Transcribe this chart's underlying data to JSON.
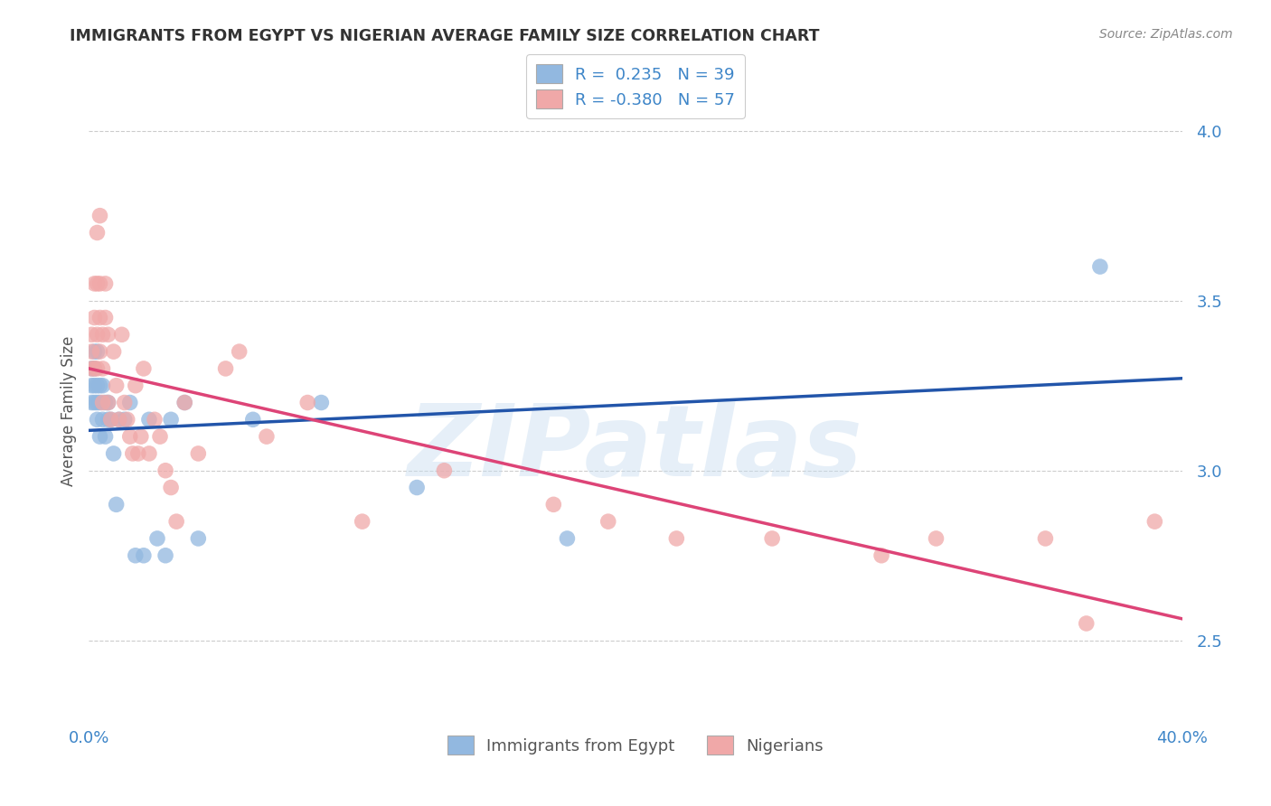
{
  "title": "IMMIGRANTS FROM EGYPT VS NIGERIAN AVERAGE FAMILY SIZE CORRELATION CHART",
  "source": "Source: ZipAtlas.com",
  "ylabel": "Average Family Size",
  "watermark": "ZIPatlas",
  "legend_egypt_label": "Immigrants from Egypt",
  "legend_nigeria_label": "Nigerians",
  "egypt_R": 0.235,
  "egypt_N": 39,
  "nigeria_R": -0.38,
  "nigeria_N": 57,
  "egypt_color": "#92b8e0",
  "nigeria_color": "#f0a8a8",
  "egypt_line_color": "#2255aa",
  "nigeria_line_color": "#dd4477",
  "xlim": [
    0.0,
    0.4
  ],
  "ylim": [
    2.25,
    4.1
  ],
  "yticks": [
    2.5,
    3.0,
    3.5,
    4.0
  ],
  "egypt_x": [
    0.001,
    0.001,
    0.001,
    0.002,
    0.002,
    0.002,
    0.002,
    0.003,
    0.003,
    0.003,
    0.003,
    0.004,
    0.004,
    0.004,
    0.005,
    0.005,
    0.006,
    0.006,
    0.007,
    0.007,
    0.008,
    0.009,
    0.01,
    0.011,
    0.013,
    0.015,
    0.017,
    0.02,
    0.022,
    0.025,
    0.028,
    0.03,
    0.035,
    0.04,
    0.06,
    0.085,
    0.12,
    0.175,
    0.37
  ],
  "egypt_y": [
    3.3,
    3.2,
    3.25,
    3.35,
    3.2,
    3.25,
    3.3,
    3.35,
    3.2,
    3.25,
    3.15,
    3.2,
    3.25,
    3.1,
    3.25,
    3.15,
    3.2,
    3.1,
    3.2,
    3.15,
    3.15,
    3.05,
    2.9,
    3.15,
    3.15,
    3.2,
    2.75,
    2.75,
    3.15,
    2.8,
    2.75,
    3.15,
    3.2,
    2.8,
    3.15,
    3.2,
    2.95,
    2.8,
    3.6
  ],
  "nigeria_x": [
    0.001,
    0.001,
    0.001,
    0.002,
    0.002,
    0.002,
    0.003,
    0.003,
    0.003,
    0.003,
    0.004,
    0.004,
    0.004,
    0.004,
    0.005,
    0.005,
    0.005,
    0.006,
    0.006,
    0.007,
    0.007,
    0.008,
    0.009,
    0.01,
    0.011,
    0.012,
    0.013,
    0.014,
    0.015,
    0.016,
    0.017,
    0.018,
    0.019,
    0.02,
    0.022,
    0.024,
    0.026,
    0.028,
    0.03,
    0.032,
    0.035,
    0.04,
    0.05,
    0.055,
    0.065,
    0.08,
    0.1,
    0.13,
    0.17,
    0.19,
    0.215,
    0.25,
    0.29,
    0.31,
    0.35,
    0.365,
    0.39
  ],
  "nigeria_y": [
    3.35,
    3.4,
    3.3,
    3.45,
    3.55,
    3.3,
    3.4,
    3.55,
    3.7,
    3.3,
    3.35,
    3.55,
    3.45,
    3.75,
    3.3,
    3.4,
    3.2,
    3.45,
    3.55,
    3.4,
    3.2,
    3.15,
    3.35,
    3.25,
    3.15,
    3.4,
    3.2,
    3.15,
    3.1,
    3.05,
    3.25,
    3.05,
    3.1,
    3.3,
    3.05,
    3.15,
    3.1,
    3.0,
    2.95,
    2.85,
    3.2,
    3.05,
    3.3,
    3.35,
    3.1,
    3.2,
    2.85,
    3.0,
    2.9,
    2.85,
    2.8,
    2.8,
    2.75,
    2.8,
    2.8,
    2.55,
    2.85
  ],
  "background_color": "#ffffff",
  "grid_color": "#cccccc"
}
